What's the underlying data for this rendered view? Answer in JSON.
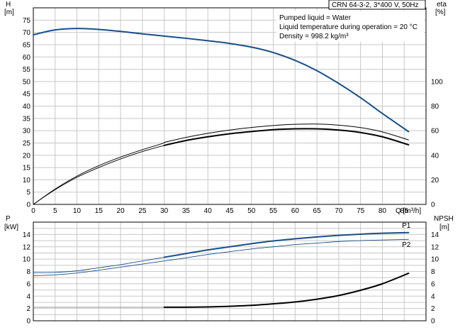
{
  "chart_data": [
    {
      "type": "line",
      "panel": "upper",
      "title": "CRN 64-3-2, 3*400 V, 50Hz",
      "notes": [
        "Pumped liquid = Water",
        "Liquid temperature during operation = 20 °C",
        "Density = 998.2 kg/m³"
      ],
      "xlabel": "Q [m³/h]",
      "xlim": [
        0,
        90
      ],
      "xticks": [
        0,
        5,
        10,
        15,
        20,
        25,
        30,
        35,
        40,
        45,
        50,
        55,
        60,
        65,
        70,
        75,
        80,
        85
      ],
      "ylabel_left": [
        "H",
        "[m]"
      ],
      "ylim_left": [
        0,
        80
      ],
      "yticks_left": [
        0,
        5,
        10,
        15,
        20,
        25,
        30,
        35,
        40,
        45,
        50,
        55,
        60,
        65,
        70,
        75
      ],
      "ylabel_right": [
        "eta",
        "[%]"
      ],
      "ylim_right": [
        0,
        160
      ],
      "yticks_right": [
        0,
        20,
        40,
        60,
        80,
        100
      ],
      "grid": true,
      "series": [
        {
          "axis": "left",
          "color": "#1a4f8a",
          "width": 2.0,
          "x": [
            0,
            5,
            10,
            15,
            20,
            25,
            30,
            35,
            40,
            45,
            50,
            55,
            60,
            65,
            70,
            75,
            80,
            86
          ],
          "y": [
            69,
            71,
            71.6,
            71.2,
            70.4,
            69.4,
            68.5,
            67.6,
            66.6,
            65.5,
            64,
            61.8,
            58.6,
            54.4,
            49.2,
            43.4,
            37,
            29.6
          ]
        },
        {
          "axis": "right",
          "color": "#000000",
          "width": 0.9,
          "x": [
            0,
            5,
            10,
            15,
            20,
            25,
            30
          ],
          "y": [
            0,
            12,
            22,
            30,
            37,
            43,
            48
          ]
        },
        {
          "axis": "right",
          "color": "#000000",
          "width": 0.9,
          "x": [
            0,
            5,
            10,
            15,
            20,
            25,
            30
          ],
          "y": [
            0,
            12.5,
            23,
            31.5,
            38.5,
            44.5,
            50
          ]
        },
        {
          "axis": "right",
          "color": "#000000",
          "width": 2.0,
          "x": [
            30,
            35,
            40,
            45,
            50,
            55,
            60,
            65,
            70,
            75,
            80,
            86
          ],
          "y": [
            48,
            52,
            55,
            57.5,
            59.3,
            60.8,
            61.5,
            61.5,
            60.5,
            58.5,
            55,
            48.5
          ]
        },
        {
          "axis": "right",
          "color": "#000000",
          "width": 1.0,
          "x": [
            30,
            35,
            40,
            45,
            50,
            55,
            60,
            65,
            70,
            75,
            80,
            86
          ],
          "y": [
            50.5,
            54.5,
            57.8,
            60.5,
            62.6,
            64.2,
            65.2,
            65.4,
            64.5,
            62.5,
            59,
            52.5
          ]
        }
      ]
    },
    {
      "type": "line",
      "panel": "lower",
      "xlim": [
        0,
        90
      ],
      "ylabel_left": [
        "P",
        "[kW]"
      ],
      "ylim_left": [
        0,
        16
      ],
      "yticks_left": [
        0,
        2,
        4,
        6,
        8,
        10,
        12,
        14
      ],
      "ylabel_right": [
        "NPSH",
        "[m]"
      ],
      "ylim_right": [
        0,
        16
      ],
      "yticks_right": [
        0,
        2,
        4,
        6,
        8,
        10,
        12,
        14
      ],
      "grid": true,
      "series": [
        {
          "name": "P1",
          "axis": "left",
          "color": "#1a4f8a",
          "width": 0.9,
          "x": [
            0,
            5,
            10,
            15,
            20,
            25,
            30
          ],
          "y": [
            7.8,
            7.85,
            8.1,
            8.6,
            9.1,
            9.7,
            10.3
          ]
        },
        {
          "name": "P1",
          "axis": "left",
          "color": "#1a4f8a",
          "width": 2.0,
          "x": [
            30,
            35,
            40,
            45,
            50,
            55,
            60,
            65,
            70,
            75,
            80,
            86
          ],
          "y": [
            10.3,
            10.9,
            11.5,
            12.0,
            12.5,
            12.95,
            13.3,
            13.6,
            13.85,
            14.05,
            14.2,
            14.3
          ]
        },
        {
          "name": "P2",
          "axis": "left",
          "color": "#1a4f8a",
          "width": 0.9,
          "x": [
            0,
            5,
            10,
            15,
            20,
            25,
            30,
            35,
            40,
            45,
            50,
            55,
            60,
            65,
            70,
            75,
            80,
            86
          ],
          "y": [
            7.3,
            7.45,
            7.75,
            8.2,
            8.7,
            9.2,
            9.7,
            10.2,
            10.75,
            11.2,
            11.65,
            12.0,
            12.35,
            12.6,
            12.85,
            13.0,
            13.1,
            13.2
          ]
        },
        {
          "axis": "right",
          "color": "#888888",
          "width": 0.9,
          "x": [
            0,
            30
          ],
          "y": [
            2.2,
            2.2
          ]
        },
        {
          "axis": "right",
          "color": "#000000",
          "width": 2.0,
          "x": [
            30,
            35,
            40,
            45,
            50,
            55,
            60,
            65,
            70,
            75,
            80,
            86
          ],
          "y": [
            2.2,
            2.2,
            2.25,
            2.35,
            2.5,
            2.75,
            3.05,
            3.5,
            4.1,
            4.95,
            6.0,
            7.7
          ]
        }
      ],
      "labels": [
        {
          "text": "P1",
          "x": 84.5,
          "y": 15.1,
          "color": "#1a4f8a"
        },
        {
          "text": "P2",
          "x": 84.5,
          "y": 12.0,
          "color": "#1a4f8a"
        }
      ]
    }
  ]
}
